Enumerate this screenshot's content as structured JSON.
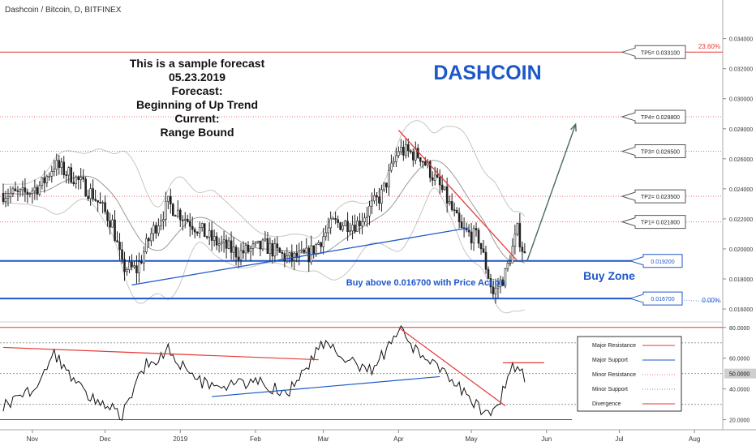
{
  "header": {
    "symbol_title": "Dashcoin / Bitcoin, D, BITFINEX"
  },
  "annotations": {
    "forecast_lines": [
      "This is a sample forecast",
      "05.23.2019",
      "Forecast:",
      "Beginning of Up Trend",
      "Current:",
      "Range Bound"
    ],
    "brand": "DASHCOIN",
    "buy_zone": "Buy Zone",
    "buy_note": "Buy above 0.016700 with Price Action",
    "fib_top": "23.60%",
    "fib_bottom": "0.00%"
  },
  "colors": {
    "major_resistance": "#e53935",
    "major_support": "#1e57c8",
    "minor_resistance": "#e57373",
    "minor_support": "#5b8fd6",
    "divergence": "#e53935",
    "candle": "#222222",
    "brand": "#1e57c8",
    "arrow": "#4a6b5a"
  },
  "chart_data": [
    {
      "type": "candlestick",
      "title": "Dashcoin / Bitcoin, D, BITFINEX",
      "x_ticks": [
        "Nov",
        "Dec",
        "2019",
        "Feb",
        "Mar",
        "Apr",
        "May",
        "Jun",
        "Jul",
        "Aug"
      ],
      "y_ticks": [
        "0.034000",
        "0.032000",
        "0.030000",
        "0.028000",
        "0.026000",
        "0.024000",
        "0.022000",
        "0.020000",
        "0.018000",
        "0.016000"
      ],
      "ylim": [
        0.0153,
        0.0356
      ],
      "price_path_approx": [
        [
          "Oct 20",
          0.0237
        ],
        [
          "Oct 28",
          0.0236
        ],
        [
          "Nov 5",
          0.0243
        ],
        [
          "Nov 10",
          0.0256
        ],
        [
          "Nov 18",
          0.0248
        ],
        [
          "Nov 26",
          0.0236
        ],
        [
          "Dec 4",
          0.0217
        ],
        [
          "Dec 8",
          0.0188
        ],
        [
          "Dec 14",
          0.0186
        ],
        [
          "Dec 20",
          0.021
        ],
        [
          "Dec 27",
          0.023
        ],
        [
          "Jan 5",
          0.0218
        ],
        [
          "Jan 15",
          0.0205
        ],
        [
          "Jan 25",
          0.0197
        ],
        [
          "Feb 5",
          0.0202
        ],
        [
          "Feb 15",
          0.0193
        ],
        [
          "Feb 23",
          0.0196
        ],
        [
          "Mar 5",
          0.0217
        ],
        [
          "Mar 15",
          0.0217
        ],
        [
          "Mar 25",
          0.0236
        ],
        [
          "Apr 1",
          0.0266
        ],
        [
          "Apr 10",
          0.0262
        ],
        [
          "Apr 20",
          0.0236
        ],
        [
          "Apr 27",
          0.0212
        ],
        [
          "May 4",
          0.0207
        ],
        [
          "May 10",
          0.017
        ],
        [
          "May 15",
          0.0183
        ],
        [
          "May 20",
          0.0212
        ],
        [
          "May 23",
          0.0195
        ]
      ],
      "levels": [
        {
          "label": "TP5= 0.033100",
          "value": 0.0331,
          "kind": "major_resistance"
        },
        {
          "label": "TP4= 0.028800",
          "value": 0.0288,
          "kind": "minor_resistance"
        },
        {
          "label": "TP3= 0.026500",
          "value": 0.0265,
          "kind": "minor_resistance"
        },
        {
          "label": "TP2= 0.023500",
          "value": 0.0235,
          "kind": "minor_resistance"
        },
        {
          "label": "TP1= 0.021800",
          "value": 0.0218,
          "kind": "minor_resistance"
        },
        {
          "label": "0.019200",
          "value": 0.0192,
          "kind": "major_support"
        },
        {
          "label": "0.016700",
          "value": 0.0167,
          "kind": "major_support"
        }
      ],
      "trendlines": [
        {
          "kind": "major_resistance",
          "from": [
            "Apr 1",
            0.0279
          ],
          "to": [
            "May 20",
            0.0192
          ]
        },
        {
          "kind": "major_support",
          "from": [
            "Dec 12",
            0.0176
          ],
          "to": [
            "Apr 30",
            0.0214
          ]
        }
      ],
      "forecast_arrow": {
        "from": [
          "May 24",
          0.0192
        ],
        "to": [
          "Jun 13",
          0.0283
        ]
      }
    },
    {
      "type": "line",
      "name": "RSI",
      "y_ticks": [
        "80.0000",
        "60.0000",
        "40.0000",
        "20.0000"
      ],
      "current_value": "50.0000",
      "ylim": [
        15,
        82
      ],
      "rsi_path_approx": [
        [
          "Oct 20",
          30
        ],
        [
          "Oct 28",
          36
        ],
        [
          "Nov 5",
          45
        ],
        [
          "Nov 10",
          63
        ],
        [
          "Nov 18",
          46
        ],
        [
          "Nov 28",
          30
        ],
        [
          "Dec 8",
          24
        ],
        [
          "Dec 18",
          56
        ],
        [
          "Dec 27",
          65
        ],
        [
          "Jan 8",
          45
        ],
        [
          "Jan 20",
          43
        ],
        [
          "Feb 2",
          44
        ],
        [
          "Feb 15",
          38
        ],
        [
          "Mar 2",
          73
        ],
        [
          "Mar 12",
          58
        ],
        [
          "Mar 22",
          52
        ],
        [
          "Apr 1",
          80
        ],
        [
          "Apr 10",
          60
        ],
        [
          "Apr 20",
          50
        ],
        [
          "May 1",
          33
        ],
        [
          "May 9",
          22
        ],
        [
          "May 12",
          28
        ],
        [
          "May 18",
          56
        ],
        [
          "May 23",
          48
        ]
      ],
      "levels": [
        80,
        70,
        50,
        30,
        20
      ],
      "divergence_lines": [
        {
          "kind": "major_resistance",
          "from": [
            "Oct 20",
            67
          ],
          "to": [
            "Feb 27",
            59
          ]
        },
        {
          "kind": "major_support",
          "from": [
            "Jan 14",
            35
          ],
          "to": [
            "Apr 18",
            48
          ]
        },
        {
          "kind": "divergence",
          "from": [
            "Apr 1",
            80
          ],
          "to": [
            "May 15",
            29
          ]
        },
        {
          "kind": "divergence",
          "from": [
            "May 14",
            57
          ],
          "to": [
            "May 31",
            57
          ]
        }
      ],
      "legend": [
        "Major Resistance",
        "Major Support",
        "Minor Resistance",
        "Minor Support",
        "Divergence"
      ],
      "legend_position": "right"
    }
  ]
}
